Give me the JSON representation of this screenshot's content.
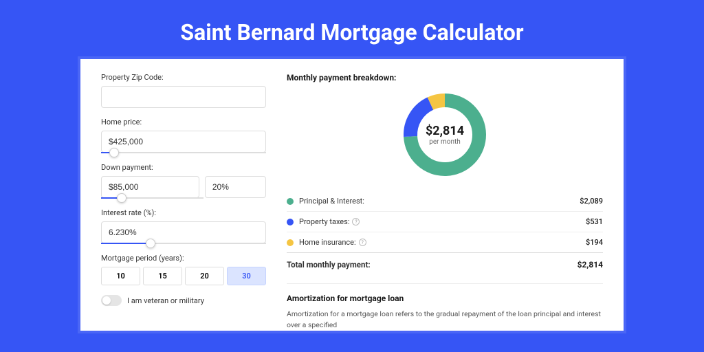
{
  "title": "Saint Bernard Mortgage Calculator",
  "colors": {
    "page_bg": "#3655f5",
    "principal": "#4caf8e",
    "taxes": "#3655f5",
    "insurance": "#f5c542"
  },
  "form": {
    "zip": {
      "label": "Property Zip Code:",
      "value": ""
    },
    "price": {
      "label": "Home price:",
      "value": "$425,000",
      "slider_pct": 8
    },
    "down": {
      "label": "Down payment:",
      "value": "$85,000",
      "pct_value": "20%",
      "slider_pct": 20
    },
    "rate": {
      "label": "Interest rate (%):",
      "value": "6.230%",
      "slider_pct": 30
    },
    "period": {
      "label": "Mortgage period (years):",
      "options": [
        "10",
        "15",
        "20",
        "30"
      ],
      "active": "30"
    },
    "veteran": {
      "label": "I am veteran or military",
      "on": false
    }
  },
  "breakdown": {
    "header": "Monthly payment breakdown:",
    "center_amount": "$2,814",
    "center_sub": "per month",
    "items": [
      {
        "label": "Principal & Interest:",
        "value": "$2,089",
        "color": "#4caf8e",
        "info": false,
        "pct": 74.2
      },
      {
        "label": "Property taxes:",
        "value": "$531",
        "color": "#3655f5",
        "info": true,
        "pct": 18.9
      },
      {
        "label": "Home insurance:",
        "value": "$194",
        "color": "#f5c542",
        "info": true,
        "pct": 6.9
      }
    ],
    "total": {
      "label": "Total monthly payment:",
      "value": "$2,814"
    }
  },
  "amort": {
    "header": "Amortization for mortgage loan",
    "text": "Amortization for a mortgage loan refers to the gradual repayment of the loan principal and interest over a specified"
  }
}
